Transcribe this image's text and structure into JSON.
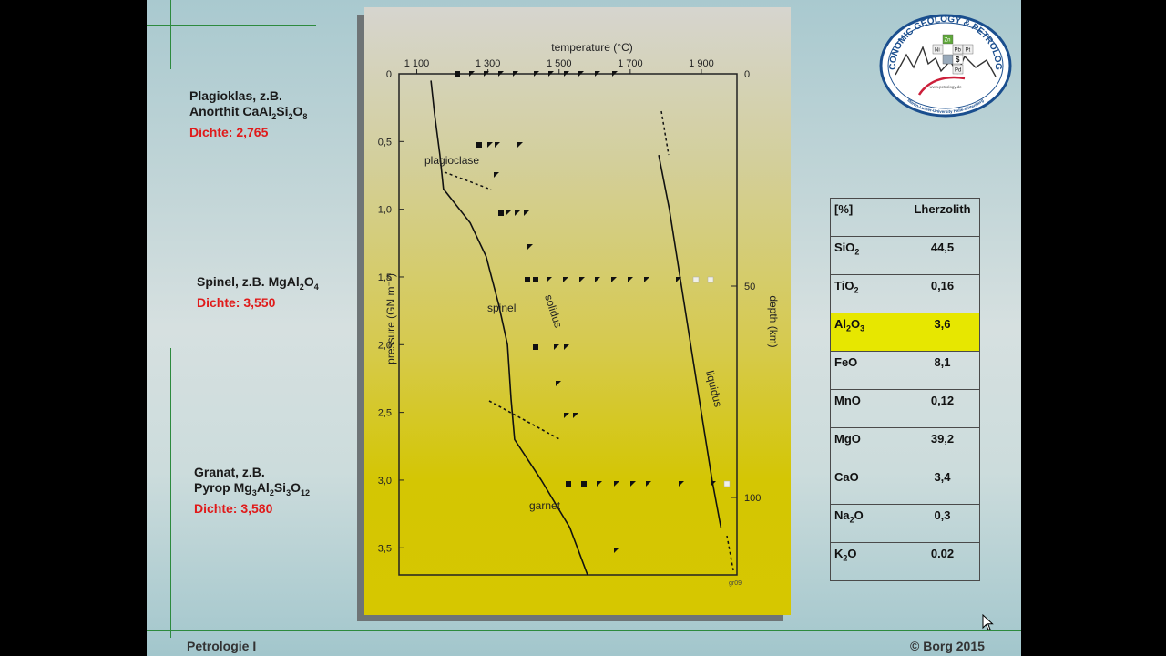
{
  "footer": {
    "left": "Petrologie I",
    "right": "© Borg 2015"
  },
  "minerals": [
    {
      "line1": "Plagioklas,  z.B.",
      "line2_prefix": "Anorthit ",
      "formula": "CaAl2Si2O8",
      "density": "Dichte: 2,765"
    },
    {
      "line1": "Spinel,  z.B. ",
      "formula": "MgAl2O4",
      "density": "Dichte: 3,550"
    },
    {
      "line1": "Granat, z.B.",
      "line2_prefix": "Pyrop ",
      "formula": "Mg3Al2Si3O12",
      "density": "Dichte: 3,580"
    }
  ],
  "logo": {
    "text": "ECONOMIC GEOLOGY & PETROLOGY",
    "subtext": "Martin-Luther-University Halle-Wittenberg",
    "url": "www.petrology.de",
    "colors": {
      "ring": "#1a4e8e",
      "accent": "#cc1f3a",
      "green": "#5fa83a"
    }
  },
  "figure": {
    "xlabel": "temperature (°C)",
    "ylabel_left": "pressure (GN m⁻²)",
    "ylabel_right": "depth (km)",
    "x_ticks": [
      "1 100",
      "1 300",
      "1 500",
      "1 700",
      "1 900"
    ],
    "y_ticks": [
      "0",
      "0,5",
      "1,0",
      "1,5",
      "2,0",
      "2,5",
      "3,0",
      "3,5"
    ],
    "depth_ticks": [
      "0",
      "50",
      "100"
    ],
    "regions": [
      "plagioclase",
      "spinel",
      "garnet"
    ],
    "curves": [
      "solidus",
      "liquidus"
    ],
    "code": "gr09"
  },
  "chart_data": {
    "type": "line",
    "xlabel": "temperature (°C)",
    "ylabel": "pressure (GN m⁻²)",
    "xlim": [
      1050,
      2000
    ],
    "ylim": [
      0,
      3.7
    ],
    "series": [
      {
        "name": "solidus",
        "points": [
          [
            1140,
            0.05
          ],
          [
            1150,
            0.3
          ],
          [
            1165,
            0.6
          ],
          [
            1175,
            0.85
          ],
          [
            1250,
            1.1
          ],
          [
            1295,
            1.35
          ],
          [
            1330,
            1.7
          ],
          [
            1355,
            2.0
          ],
          [
            1365,
            2.4
          ],
          [
            1375,
            2.7
          ],
          [
            1450,
            3.0
          ],
          [
            1530,
            3.35
          ],
          [
            1580,
            3.7
          ]
        ]
      },
      {
        "name": "liquidus",
        "points": [
          [
            1780,
            0.6
          ],
          [
            1810,
            1.0
          ],
          [
            1840,
            1.5
          ],
          [
            1870,
            2.0
          ],
          [
            1900,
            2.5
          ],
          [
            1930,
            3.0
          ],
          [
            1955,
            3.35
          ]
        ]
      }
    ]
  },
  "table": {
    "header": [
      "[%]",
      "Lherzolith"
    ],
    "rows": [
      {
        "oxide": "SiO2",
        "value": "44,5"
      },
      {
        "oxide": "TiO2",
        "value": "0,16"
      },
      {
        "oxide": "Al2O3",
        "value": "3,6",
        "highlight": true
      },
      {
        "oxide": "FeO",
        "value": "8,1"
      },
      {
        "oxide": "MnO",
        "value": "0,12"
      },
      {
        "oxide": "MgO",
        "value": "39,2"
      },
      {
        "oxide": "CaO",
        "value": "3,4"
      },
      {
        "oxide": "Na2O",
        "value": "0,3"
      },
      {
        "oxide": "K2O",
        "value": "0.02"
      }
    ],
    "highlight_color": "#e7e700"
  }
}
